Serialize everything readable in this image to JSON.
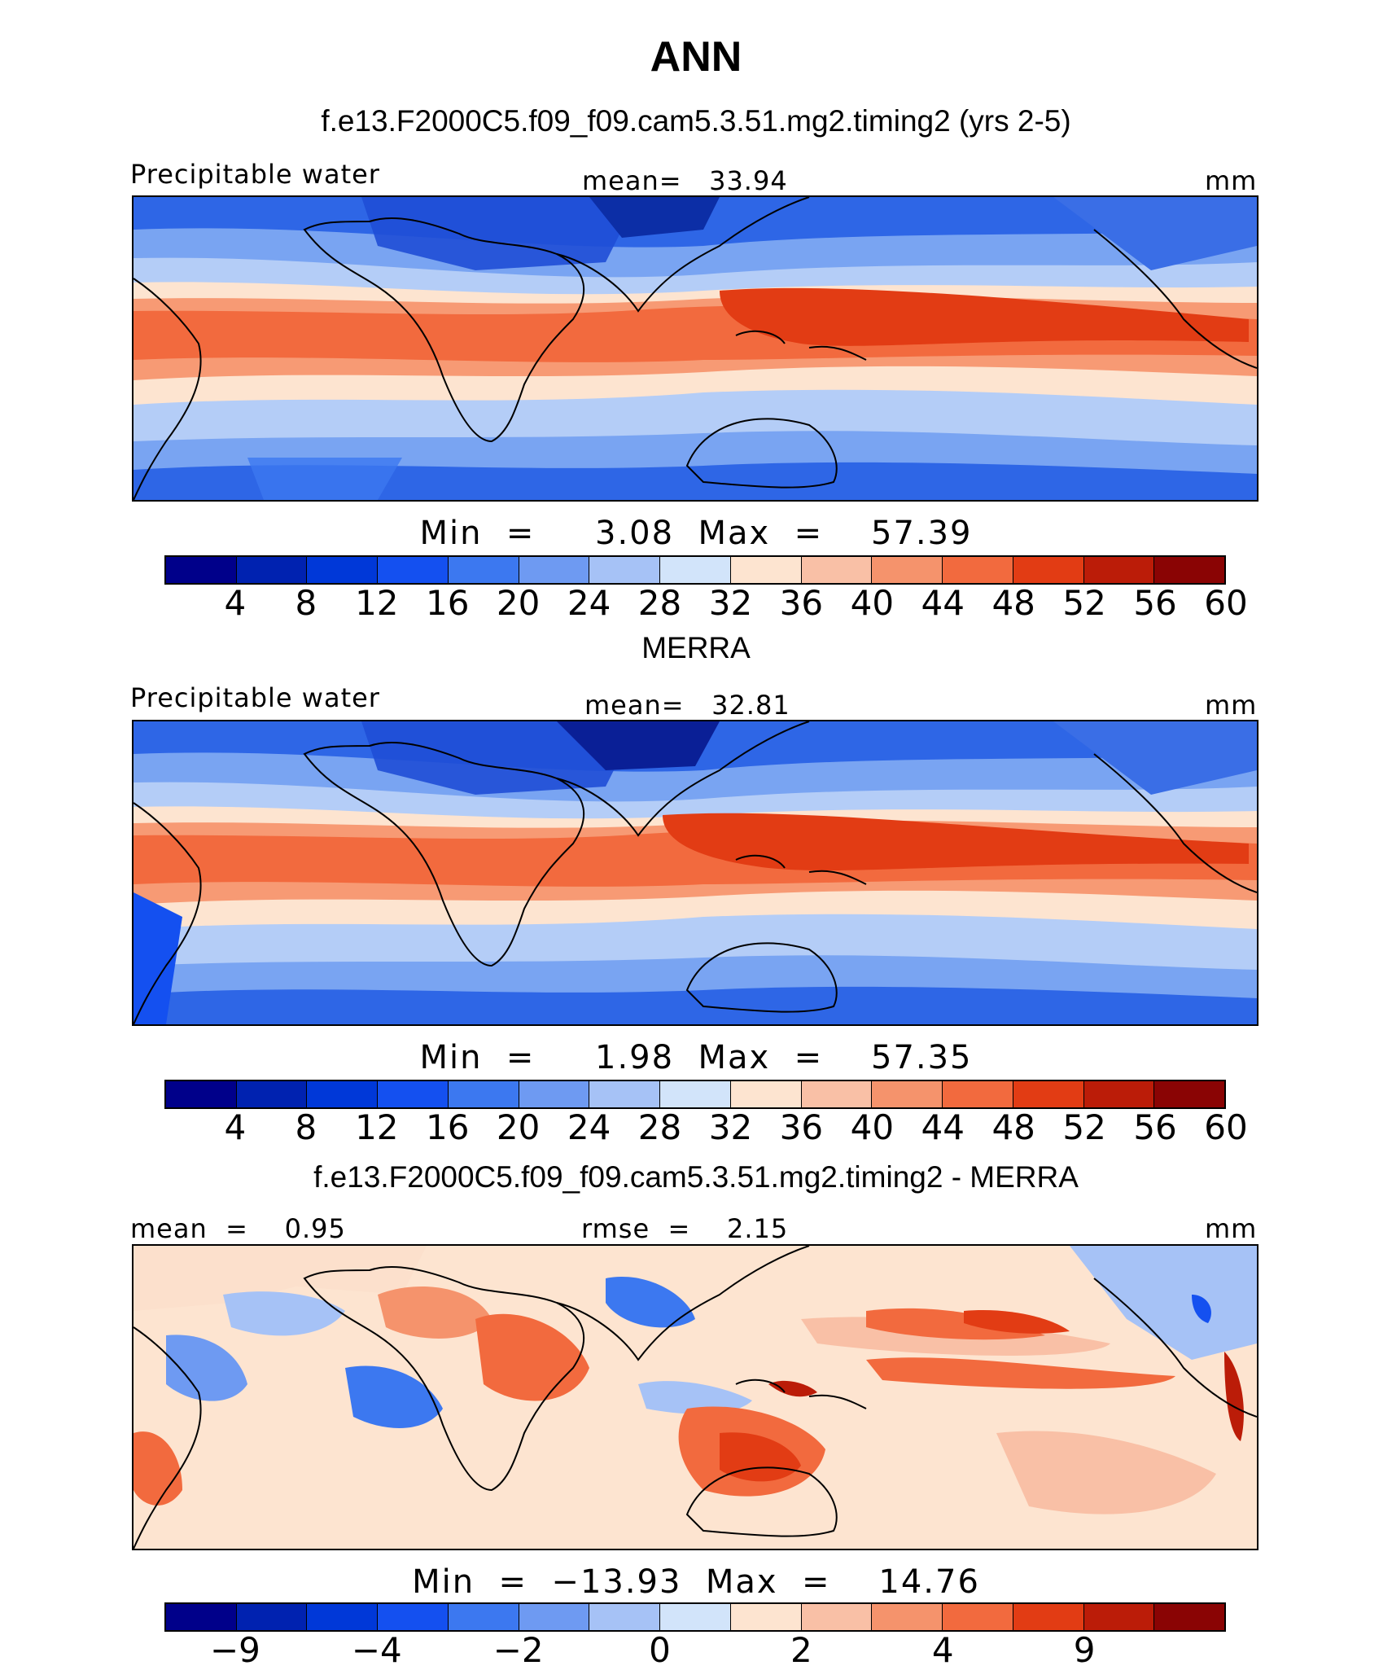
{
  "title": "ANN",
  "panels": [
    {
      "title": "f.e13.F2000C5.f09_f09.cam5.3.51.mg2.timing2 (yrs 2-5)",
      "left_label": "Precipitable water",
      "center_label": "mean=   33.94",
      "right_label": "mm",
      "minmax": "Min  =     3.08  Max  =    57.39",
      "ticks": [
        "4",
        "8",
        "12",
        "16",
        "20",
        "24",
        "28",
        "32",
        "36",
        "40",
        "44",
        "48",
        "52",
        "56",
        "60"
      ]
    },
    {
      "title": "MERRA",
      "left_label": "Precipitable water",
      "center_label": "mean=   32.81",
      "right_label": "mm",
      "minmax": "Min  =     1.98  Max  =    57.35",
      "ticks": [
        "4",
        "8",
        "12",
        "16",
        "20",
        "24",
        "28",
        "32",
        "36",
        "40",
        "44",
        "48",
        "52",
        "56",
        "60"
      ]
    },
    {
      "title": "f.e13.F2000C5.f09_f09.cam5.3.51.mg2.timing2 - MERRA",
      "left_label": "mean  =    0.95",
      "center_label": "rmse  =    2.15",
      "right_label": "mm",
      "minmax": "Min  =  −13.93  Max  =    14.76",
      "ticks": [
        "−9",
        "−4",
        "−2",
        "0",
        "2",
        "4",
        "9"
      ]
    }
  ],
  "colorbar_colors": [
    "#00008a",
    "#0022b0",
    "#0038d8",
    "#1450f0",
    "#3c78f0",
    "#6e9af2",
    "#a6c2f6",
    "#d2e4fa",
    "#fde4d0",
    "#f9c0a6",
    "#f5936c",
    "#f26a3e",
    "#e23c14",
    "#bb1c08",
    "#8a0404"
  ],
  "colorbar_colors_diff": [
    "#00008a",
    "#0022b0",
    "#0038d8",
    "#1450f0",
    "#3c78f0",
    "#6e9af2",
    "#a6c2f6",
    "#d2e4fa",
    "#fde4d0",
    "#f9c0a6",
    "#f5936c",
    "#f26a3e",
    "#e23c14",
    "#bb1c08",
    "#8a0404"
  ]
}
